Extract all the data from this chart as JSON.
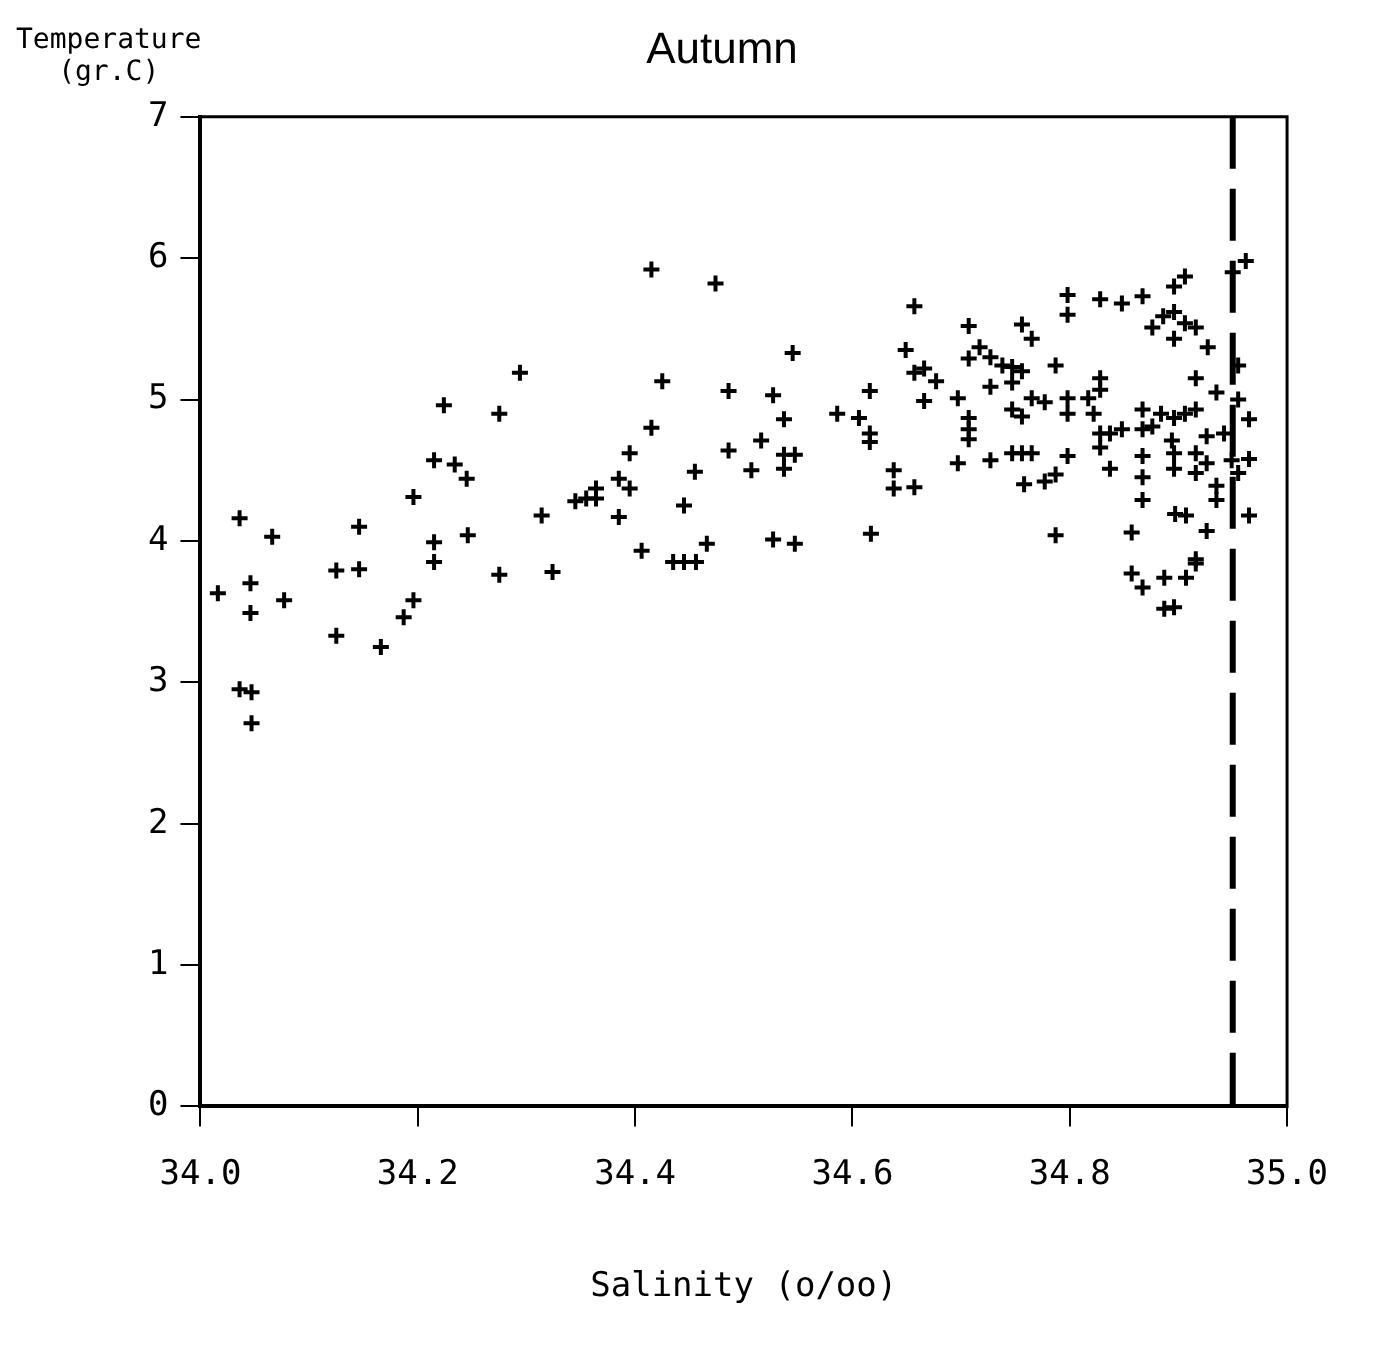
{
  "chart_data": {
    "type": "scatter",
    "title": "Autumn",
    "xlabel": "Salinity (o/oo)",
    "ylabel": "Temperature\n(gr.C)",
    "xlim": [
      34.0,
      35.0
    ],
    "xticks": [
      {
        "value": 34.0,
        "label": "34.0"
      },
      {
        "value": 34.2,
        "label": "34.2"
      },
      {
        "value": 34.4,
        "label": "34.4"
      },
      {
        "value": 34.6,
        "label": "34.6"
      },
      {
        "value": 34.8,
        "label": "34.8"
      },
      {
        "value": 35.0,
        "label": "35.0"
      }
    ],
    "ylim": [
      0,
      7
    ],
    "yticks": [
      0,
      1,
      2,
      3,
      4,
      5,
      6,
      7
    ],
    "marker": "cross",
    "legend": false,
    "ref_lines": [
      {
        "axis": "x",
        "value": 34.95,
        "line_style": "dashed",
        "color": "#000000"
      }
    ],
    "series": [
      {
        "color": "#000000",
        "x": [
          34.016,
          34.036,
          34.046,
          34.046,
          34.036,
          34.047,
          34.047,
          34.066,
          34.077,
          34.125,
          34.125,
          34.146,
          34.146,
          34.166,
          34.187,
          34.196,
          34.196,
          34.215,
          34.215,
          34.215,
          34.224,
          34.234,
          34.245,
          34.246,
          34.275,
          34.275,
          34.294,
          34.314,
          34.324,
          34.345,
          34.355,
          34.364,
          34.364,
          34.385,
          34.385,
          34.395,
          34.395,
          34.406,
          34.415,
          34.415,
          34.425,
          34.435,
          34.445,
          34.456,
          34.445,
          34.455,
          34.466,
          34.474,
          34.486,
          34.486,
          34.507,
          34.516,
          34.545,
          34.527,
          34.527,
          34.547,
          34.537,
          34.537,
          34.547,
          34.537,
          34.586,
          34.606,
          34.616,
          34.616,
          34.616,
          34.617,
          34.638,
          34.638,
          34.657,
          34.657,
          34.649,
          34.657,
          34.666,
          34.677,
          34.666,
          34.697,
          34.707,
          34.707,
          34.707,
          34.707,
          34.707,
          34.697,
          34.717,
          34.727,
          34.727,
          34.727,
          34.738,
          34.747,
          34.747,
          34.756,
          34.756,
          34.765,
          34.747,
          34.756,
          34.765,
          34.777,
          34.747,
          34.756,
          34.765,
          34.758,
          34.777,
          34.787,
          34.787,
          34.787,
          34.798,
          34.798,
          34.798,
          34.798,
          34.798,
          34.817,
          34.822,
          34.828,
          34.828,
          34.828,
          34.828,
          34.837,
          34.848,
          34.837,
          34.828,
          34.848,
          34.867,
          34.867,
          34.867,
          34.867,
          34.867,
          34.867,
          34.857,
          34.857,
          34.867,
          34.887,
          34.887,
          34.896,
          34.907,
          34.916,
          34.916,
          34.926,
          34.897,
          34.907,
          34.935,
          34.876,
          34.884,
          34.896,
          34.906,
          34.916,
          34.894,
          34.896,
          34.896,
          34.916,
          34.916,
          34.926,
          34.926,
          34.935,
          34.935,
          34.876,
          34.886,
          34.896,
          34.896,
          34.906,
          34.916,
          34.927,
          34.896,
          34.906,
          34.916,
          34.942,
          34.949,
          34.955,
          34.955,
          34.965,
          34.965,
          34.965,
          34.955,
          34.95,
          34.962
        ],
        "values": [
          3.63,
          4.16,
          3.7,
          3.49,
          2.95,
          2.93,
          2.71,
          4.03,
          3.58,
          3.79,
          3.33,
          4.1,
          3.8,
          3.25,
          3.46,
          3.58,
          4.31,
          4.57,
          3.99,
          3.85,
          4.96,
          4.54,
          4.44,
          4.04,
          4.9,
          3.76,
          5.19,
          4.18,
          3.78,
          4.28,
          4.3,
          4.37,
          4.3,
          4.44,
          4.17,
          4.37,
          4.62,
          3.93,
          4.8,
          5.92,
          5.13,
          3.85,
          3.85,
          3.85,
          4.25,
          4.49,
          3.98,
          5.82,
          5.06,
          4.64,
          4.5,
          4.71,
          5.33,
          5.03,
          4.01,
          3.98,
          4.86,
          4.61,
          4.61,
          4.51,
          4.9,
          4.87,
          5.06,
          4.76,
          4.7,
          4.05,
          4.5,
          4.37,
          4.38,
          5.66,
          5.35,
          5.19,
          5.22,
          5.13,
          4.99,
          5.01,
          5.52,
          5.29,
          4.87,
          4.79,
          4.72,
          4.55,
          5.37,
          5.3,
          5.09,
          4.57,
          5.24,
          5.23,
          5.12,
          5.53,
          5.2,
          5.43,
          4.93,
          4.88,
          5.01,
          4.98,
          4.62,
          4.62,
          4.62,
          4.4,
          4.42,
          4.47,
          5.24,
          4.04,
          5.74,
          5.6,
          5.01,
          4.9,
          4.6,
          5.01,
          4.9,
          5.15,
          5.07,
          4.76,
          4.66,
          4.76,
          4.79,
          4.51,
          5.71,
          5.68,
          5.73,
          4.93,
          4.79,
          4.6,
          4.45,
          4.29,
          4.06,
          3.77,
          3.67,
          3.74,
          3.52,
          3.53,
          3.74,
          3.84,
          3.87,
          4.07,
          4.19,
          4.18,
          4.29,
          4.81,
          4.9,
          4.87,
          4.9,
          4.93,
          4.71,
          4.62,
          4.51,
          4.62,
          4.48,
          4.74,
          4.55,
          4.39,
          5.05,
          5.51,
          5.59,
          5.62,
          5.43,
          5.54,
          5.51,
          5.37,
          5.8,
          5.87,
          5.15,
          4.76,
          4.57,
          5.0,
          5.24,
          4.86,
          4.58,
          4.18,
          4.48,
          5.9,
          5.98
        ]
      }
    ]
  }
}
